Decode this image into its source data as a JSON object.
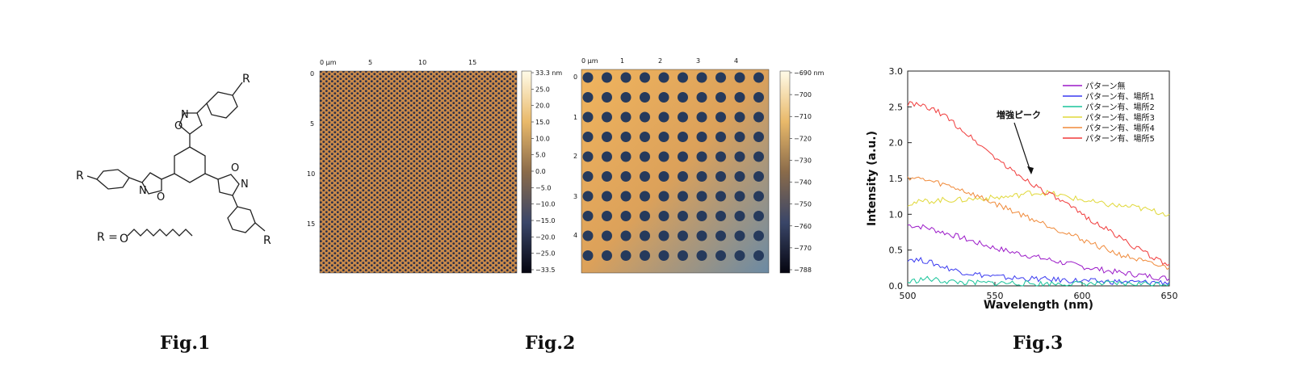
{
  "fig1": {
    "caption": "Fig.1",
    "r_top": "R",
    "r_left": "R",
    "r_right": "R",
    "r_definition": "R =",
    "r_oxygen": "O",
    "isox_top_o": "O",
    "isox_top_n": "N",
    "isox_left_n": "N",
    "isox_left_o": "O",
    "isox_right_o": "O",
    "isox_right_n": "N"
  },
  "fig2": {
    "caption": "Fig.2",
    "left_map": {
      "x_ticks": [
        "0 µm",
        "5",
        "10",
        "15"
      ],
      "y_ticks": [
        "0",
        "5",
        "10",
        "15"
      ],
      "scale_labels": [
        "33.3 nm",
        "25.0",
        "20.0",
        "15.0",
        "10.0",
        "5.0",
        "0.0",
        "−5.0",
        "−10.0",
        "−15.0",
        "−20.0",
        "−25.0",
        "−33.5"
      ]
    },
    "right_map": {
      "x_ticks": [
        "0 µm",
        "1",
        "2",
        "3",
        "4"
      ],
      "y_ticks": [
        "0",
        "1",
        "2",
        "3",
        "4"
      ],
      "scale_labels": [
        "−690 nm",
        "−700",
        "−710",
        "−720",
        "−730",
        "−740",
        "−750",
        "−760",
        "−770",
        "−788"
      ]
    }
  },
  "fig3": {
    "caption": "Fig.3",
    "annotation": "増強ピーク",
    "chart_data": {
      "type": "line",
      "xlabel": "Wavelength (nm)",
      "ylabel": "Intensity (a.u.)",
      "xlim": [
        500,
        650
      ],
      "ylim": [
        0.0,
        3.0
      ],
      "x_ticks": [
        "500",
        "550",
        "600",
        "650"
      ],
      "y_ticks": [
        "0.0",
        "0.5",
        "1.0",
        "1.5",
        "2.0",
        "2.5",
        "3.0"
      ],
      "legend_position": "top-right",
      "x": [
        500,
        510,
        520,
        530,
        540,
        550,
        560,
        570,
        580,
        590,
        600,
        610,
        620,
        630,
        640,
        650
      ],
      "series": [
        {
          "name": "パターン無",
          "color": "#9b19c8",
          "values": [
            0.85,
            0.82,
            0.75,
            0.68,
            0.6,
            0.53,
            0.47,
            0.42,
            0.37,
            0.32,
            0.27,
            0.23,
            0.19,
            0.16,
            0.13,
            0.1
          ]
        },
        {
          "name": "パターン有、場所1",
          "color": "#3a3af0",
          "values": [
            0.38,
            0.35,
            0.27,
            0.2,
            0.16,
            0.13,
            0.11,
            0.1,
            0.09,
            0.08,
            0.07,
            0.06,
            0.06,
            0.05,
            0.05,
            0.05
          ]
        },
        {
          "name": "パターン有、場所2",
          "color": "#18c49a",
          "values": [
            0.05,
            0.1,
            0.07,
            0.05,
            0.04,
            0.04,
            0.04,
            0.03,
            0.03,
            0.03,
            0.03,
            0.03,
            0.03,
            0.03,
            0.03,
            0.03
          ]
        },
        {
          "name": "パターン有、場所3",
          "color": "#e0d838",
          "values": [
            1.15,
            1.18,
            1.2,
            1.2,
            1.22,
            1.23,
            1.25,
            1.3,
            1.3,
            1.25,
            1.2,
            1.15,
            1.12,
            1.1,
            1.05,
            1.0
          ]
        },
        {
          "name": "パターン有、場所4",
          "color": "#f08a3a",
          "values": [
            1.52,
            1.48,
            1.42,
            1.35,
            1.25,
            1.15,
            1.05,
            0.95,
            0.85,
            0.75,
            0.65,
            0.55,
            0.45,
            0.38,
            0.3,
            0.25
          ]
        },
        {
          "name": "パターン有、場所5",
          "color": "#f03a3a",
          "values": [
            2.55,
            2.5,
            2.4,
            2.2,
            2.0,
            1.8,
            1.6,
            1.45,
            1.3,
            1.15,
            1.0,
            0.85,
            0.7,
            0.55,
            0.4,
            0.3
          ]
        }
      ]
    }
  }
}
